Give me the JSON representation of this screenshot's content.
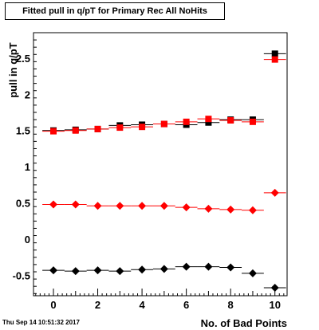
{
  "chart_data": {
    "type": "scatter",
    "title": "Fitted pull in q/pT for Primary Rec All NoHits",
    "xlabel": "No. of Bad Points",
    "ylabel": "pull in q/pT",
    "xlim": [
      -0.9,
      10.55
    ],
    "ylim": [
      -0.78,
      2.85
    ],
    "x_ticks": [
      0,
      2,
      4,
      6,
      8,
      10
    ],
    "x_tick_labels": [
      "0",
      "2",
      "4",
      "6",
      "8",
      "10"
    ],
    "y_ticks": [
      -0.5,
      0,
      0.5,
      1,
      1.5,
      2,
      2.5
    ],
    "y_tick_labels": [
      "-0.5",
      "0",
      "0.5",
      "1",
      "1.5",
      "2",
      "2.5"
    ],
    "grid": false,
    "legend": "none",
    "x": [
      0,
      1,
      2,
      3,
      4,
      5,
      6,
      7,
      8,
      9,
      10
    ],
    "series": [
      {
        "marker": "square",
        "color": "#000000",
        "values": [
          1.5,
          1.51,
          1.52,
          1.57,
          1.58,
          1.59,
          1.58,
          1.61,
          1.65,
          1.65,
          2.56
        ]
      },
      {
        "marker": "square",
        "color": "#ff0000",
        "values": [
          1.49,
          1.5,
          1.52,
          1.54,
          1.55,
          1.59,
          1.62,
          1.66,
          1.64,
          1.62,
          2.48
        ]
      },
      {
        "marker": "diamond",
        "color": "#ff0000",
        "values": [
          0.48,
          0.48,
          0.46,
          0.46,
          0.46,
          0.46,
          0.44,
          0.42,
          0.41,
          0.4,
          0.64
        ]
      },
      {
        "marker": "diamond",
        "color": "#000000",
        "values": [
          -0.43,
          -0.44,
          -0.43,
          -0.44,
          -0.42,
          -0.41,
          -0.38,
          -0.38,
          -0.39,
          -0.47,
          -0.67
        ]
      }
    ]
  },
  "footer": {
    "timestamp": "Thu Sep 14 10:51:32 2017"
  }
}
